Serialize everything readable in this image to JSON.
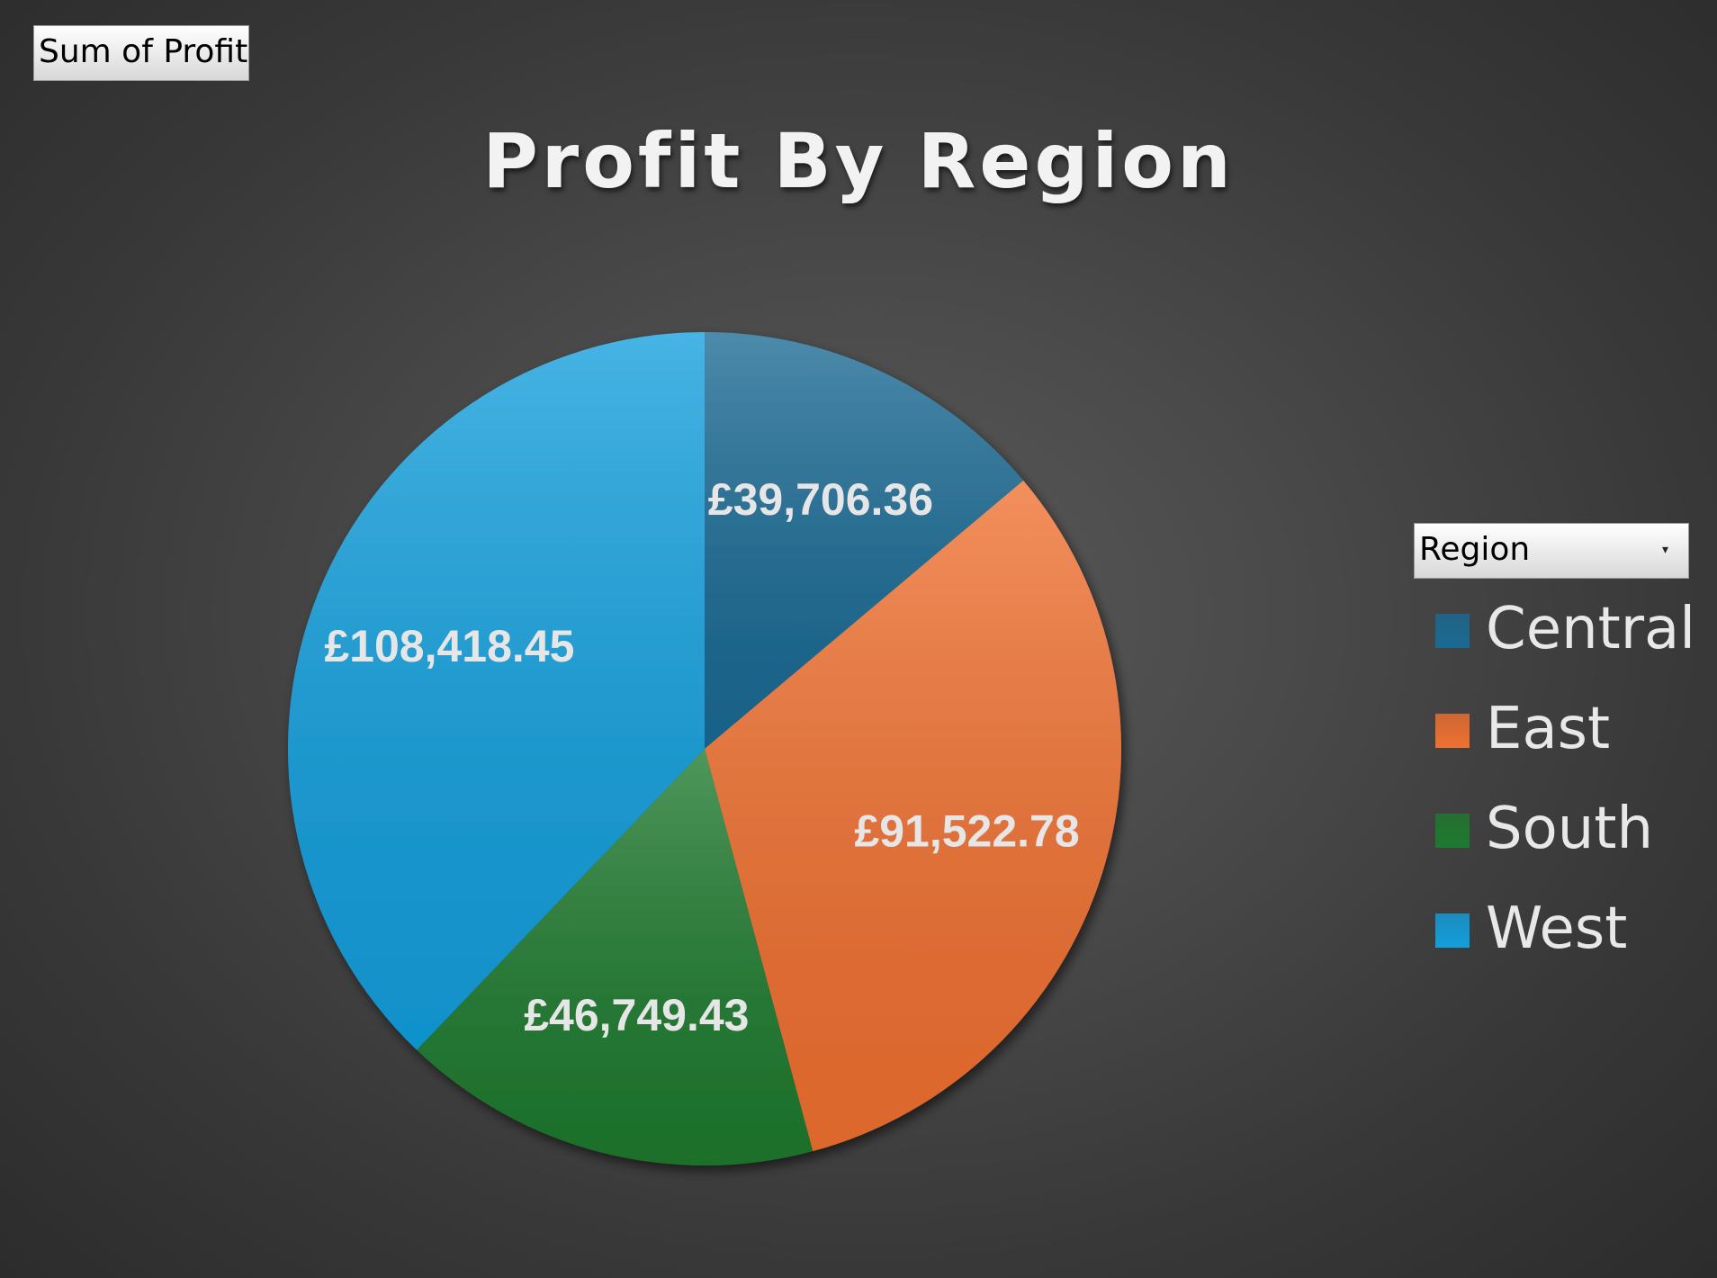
{
  "pivot": {
    "value_field_label": "Sum of Profit",
    "legend_field_label": "Region",
    "legend_field_icon": "dropdown-arrow-icon"
  },
  "chart_data": {
    "type": "pie",
    "title": "Profit By Region",
    "categories": [
      "Central",
      "East",
      "South",
      "West"
    ],
    "values": [
      39706.36,
      91522.78,
      46749.43,
      108418.45
    ],
    "data_labels": [
      "£39,706.36",
      "£91,522.78",
      "£46,749.43",
      "£108,418.45"
    ],
    "colors": [
      "#1a6a94",
      "#f07030",
      "#1e7a2e",
      "#129fdd"
    ],
    "legend_position": "right"
  }
}
